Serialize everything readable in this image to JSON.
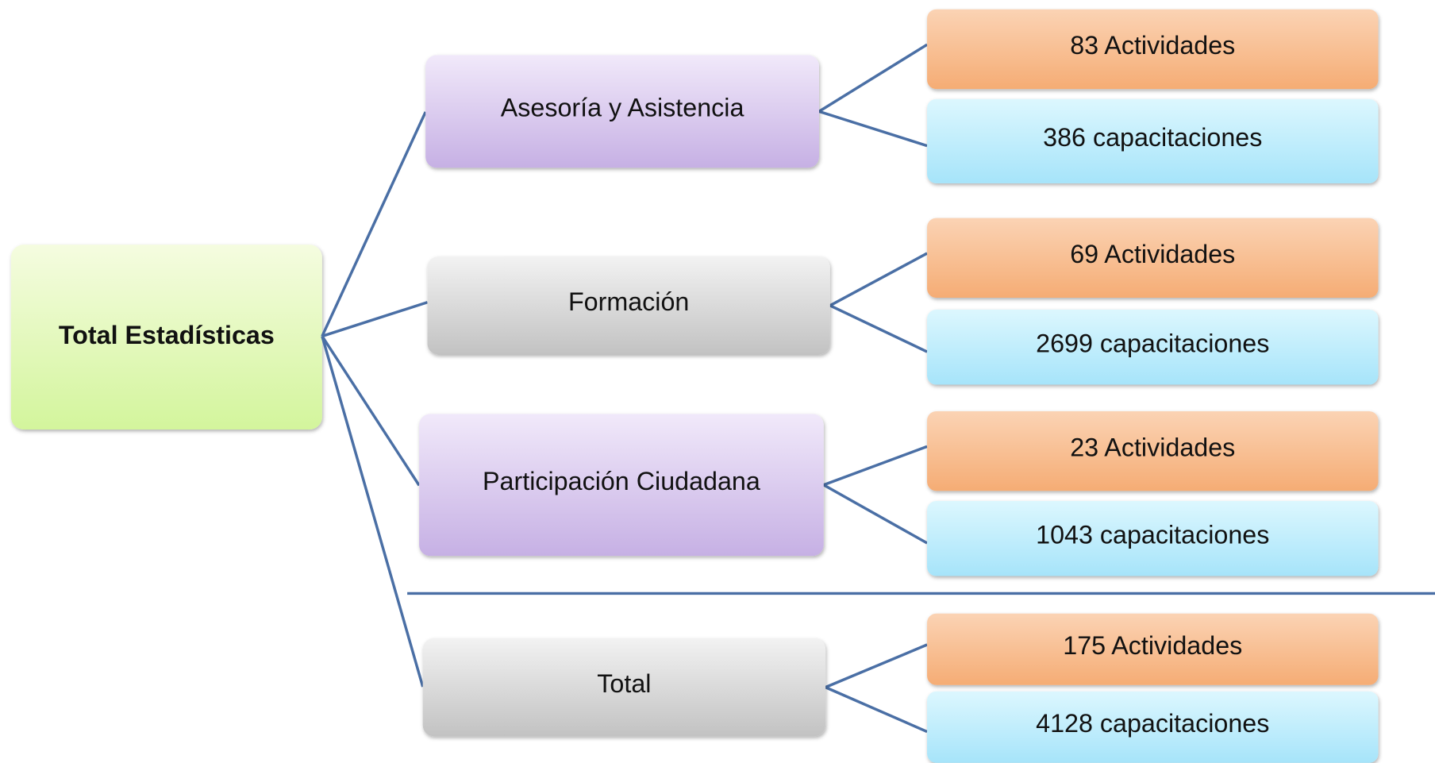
{
  "root": {
    "label": "Total Estadísticas"
  },
  "groups": [
    {
      "label": "Asesoría y Asistencia",
      "activities": "83 Actividades",
      "trainings": "386 capacitaciones"
    },
    {
      "label": "Formación",
      "activities": "69 Actividades",
      "trainings": "2699 capacitaciones"
    },
    {
      "label": "Participación Ciudadana",
      "activities": "23 Actividades",
      "trainings": "1043 capacitaciones"
    },
    {
      "label": "Total",
      "activities": "175 Actividades",
      "trainings": "4128 capacitaciones"
    }
  ]
}
